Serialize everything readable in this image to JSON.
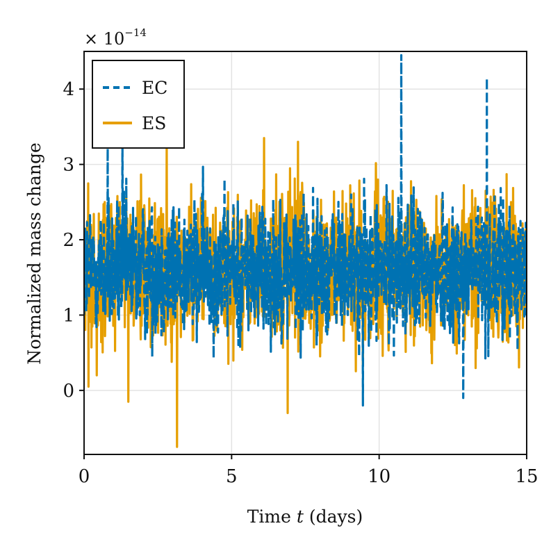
{
  "chart_data": {
    "type": "line",
    "xlabel_parts": [
      "Time ",
      "t",
      " (days)"
    ],
    "ylabel": "Normalized mass change",
    "y_multiplier": {
      "base": "× 10",
      "exponent": "−14"
    },
    "xlim": [
      0,
      15
    ],
    "ylim": [
      -0.85,
      4.5
    ],
    "x_ticks": [
      0,
      5,
      10,
      15
    ],
    "x_tick_labels": [
      "0",
      "5",
      "10",
      "15"
    ],
    "y_ticks": [
      0,
      1,
      2,
      3,
      4
    ],
    "y_tick_labels": [
      "0",
      "1",
      "2",
      "3",
      "4"
    ],
    "grid": true,
    "legend_position": "top-left",
    "series": [
      {
        "name": "EC",
        "color": "#0072b2",
        "style": "dashed",
        "noise_center": 1.6,
        "noise_spread": 0.45,
        "spikes": [
          {
            "x": 0.8,
            "y": 3.3
          },
          {
            "x": 1.3,
            "y": 3.3
          },
          {
            "x": 9.45,
            "y": -0.2
          },
          {
            "x": 10.75,
            "y": 4.45
          },
          {
            "x": 12.85,
            "y": -0.1
          },
          {
            "x": 13.65,
            "y": 4.15
          }
        ]
      },
      {
        "name": "ES",
        "color": "#e69f00",
        "style": "solid",
        "noise_center": 1.6,
        "noise_spread": 0.5,
        "spikes": [
          {
            "x": 0.15,
            "y": 0.05
          },
          {
            "x": 1.5,
            "y": -0.15
          },
          {
            "x": 2.8,
            "y": 3.3
          },
          {
            "x": 3.15,
            "y": -0.75
          },
          {
            "x": 6.1,
            "y": 3.35
          },
          {
            "x": 6.9,
            "y": -0.3
          },
          {
            "x": 7.25,
            "y": 3.3
          }
        ]
      }
    ]
  }
}
